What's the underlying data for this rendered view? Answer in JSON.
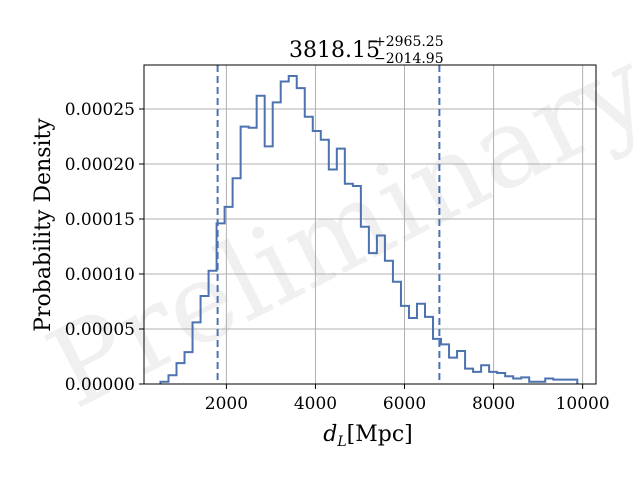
{
  "chart_data": {
    "type": "histogram",
    "title": {
      "value": "3818.15",
      "upper": "+2965.25",
      "lower": "−2014.95"
    },
    "xlabel": "d_L[Mpc]",
    "xlabel_parts": {
      "symbol": "d",
      "subscript": "L",
      "unit": "[Mpc]"
    },
    "ylabel": "Probability Density",
    "watermark": "Preliminary",
    "xlim": [
      150,
      10300
    ],
    "ylim": [
      0,
      0.00029
    ],
    "xticks": [
      2000,
      4000,
      6000,
      8000,
      10000
    ],
    "xtick_labels": [
      "2000",
      "4000",
      "6000",
      "8000",
      "10000"
    ],
    "yticks": [
      0,
      5e-05,
      0.0001,
      0.00015,
      0.0002,
      0.00025
    ],
    "ytick_labels": [
      "0.00000",
      "0.00005",
      "0.00010",
      "0.00015",
      "0.00020",
      "0.00025"
    ],
    "grid": true,
    "color": "#4c72b0",
    "quantiles": [
      1803,
      6783
    ],
    "bin_edges": [
      520,
      700,
      880,
      1060,
      1240,
      1420,
      1600,
      1780,
      1960,
      2140,
      2320,
      2500,
      2680,
      2860,
      3040,
      3220,
      3400,
      3580,
      3760,
      3940,
      4120,
      4300,
      4480,
      4660,
      4840,
      5020,
      5200,
      5380,
      5560,
      5740,
      5920,
      6100,
      6280,
      6460,
      6640,
      6820,
      7000,
      7180,
      7360,
      7540,
      7720,
      7900,
      8080,
      8260,
      8440,
      8620,
      8800,
      8980,
      9160,
      9340,
      9520,
      9700,
      9880
    ],
    "density": [
      2e-06,
      8e-06,
      1.9e-05,
      2.9e-05,
      5.6e-05,
      8e-05,
      0.000103,
      0.000146,
      0.000161,
      0.000187,
      0.000234,
      0.000233,
      0.000262,
      0.000216,
      0.000256,
      0.000275,
      0.00028,
      0.000269,
      0.000243,
      0.00023,
      0.000222,
      0.000195,
      0.000214,
      0.000182,
      0.00018,
      0.000143,
      0.000119,
      0.000135,
      0.000112,
      9.3e-05,
      7.1e-05,
      6e-05,
      7.3e-05,
      6.1e-05,
      4.1e-05,
      3.6e-05,
      2.4e-05,
      3e-05,
      1.4e-05,
      1.1e-05,
      1.7e-05,
      1.1e-05,
      1e-05,
      7e-06,
      5e-06,
      6e-06,
      2e-06,
      2e-06,
      5e-06,
      4e-06,
      4e-06,
      4e-06
    ]
  }
}
